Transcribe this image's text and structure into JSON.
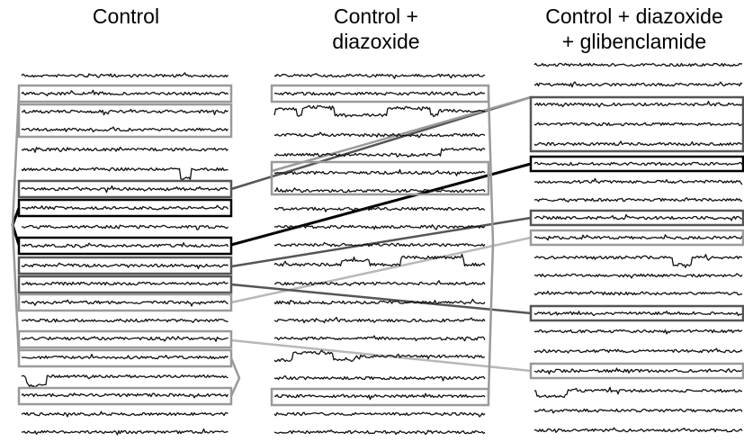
{
  "columns": [
    {
      "title": "Control"
    },
    {
      "title": "Control +\ndiazoxide"
    },
    {
      "title": "Control + diazoxide\n+ glibenclamide"
    }
  ],
  "colors": {
    "trace": "#111111",
    "box_gray": "#9a9a9a",
    "box_dark": "#555555",
    "box_black": "#000000",
    "link_light": "#b8b8b8"
  }
}
